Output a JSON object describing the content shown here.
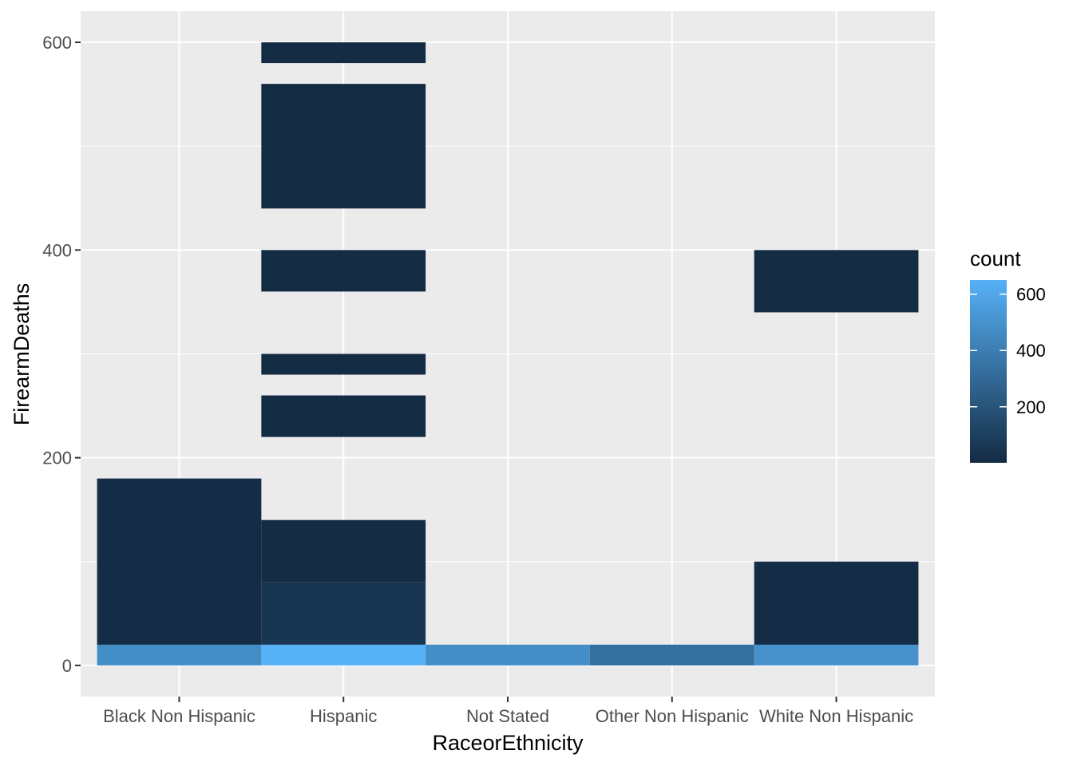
{
  "chart_data": {
    "type": "heatmap",
    "xlabel": "RaceorEthnicity",
    "ylabel": "FirearmDeaths",
    "categories": [
      "Black Non Hispanic",
      "Hispanic",
      "Not Stated",
      "Other Non Hispanic",
      "White Non Hispanic"
    ],
    "ylim": [
      -30,
      630
    ],
    "yticks": [
      0,
      200,
      400,
      600
    ],
    "bin_width": 20,
    "grid": true,
    "legend": {
      "title": "count",
      "position": "right",
      "range": [
        1,
        650
      ],
      "ticks": [
        200,
        400,
        600
      ],
      "low_color": "#132B43",
      "high_color": "#56B1F7"
    },
    "tiles": [
      {
        "x": "Black Non Hispanic",
        "y0": 0,
        "y1": 20,
        "count": 480
      },
      {
        "x": "Black Non Hispanic",
        "y0": 20,
        "y1": 180,
        "count": 8
      },
      {
        "x": "Hispanic",
        "y0": 0,
        "y1": 20,
        "count": 650
      },
      {
        "x": "Hispanic",
        "y0": 20,
        "y1": 80,
        "count": 50
      },
      {
        "x": "Hispanic",
        "y0": 80,
        "y1": 140,
        "count": 10
      },
      {
        "x": "Hispanic",
        "y0": 220,
        "y1": 260,
        "count": 2
      },
      {
        "x": "Hispanic",
        "y0": 280,
        "y1": 300,
        "count": 2
      },
      {
        "x": "Hispanic",
        "y0": 360,
        "y1": 400,
        "count": 2
      },
      {
        "x": "Hispanic",
        "y0": 440,
        "y1": 560,
        "count": 2
      },
      {
        "x": "Hispanic",
        "y0": 580,
        "y1": 600,
        "count": 2
      },
      {
        "x": "Not Stated",
        "y0": 0,
        "y1": 20,
        "count": 480
      },
      {
        "x": "Other Non Hispanic",
        "y0": 0,
        "y1": 20,
        "count": 330
      },
      {
        "x": "White Non Hispanic",
        "y0": 0,
        "y1": 20,
        "count": 500
      },
      {
        "x": "White Non Hispanic",
        "y0": 20,
        "y1": 100,
        "count": 8
      },
      {
        "x": "White Non Hispanic",
        "y0": 340,
        "y1": 400,
        "count": 2
      }
    ]
  }
}
